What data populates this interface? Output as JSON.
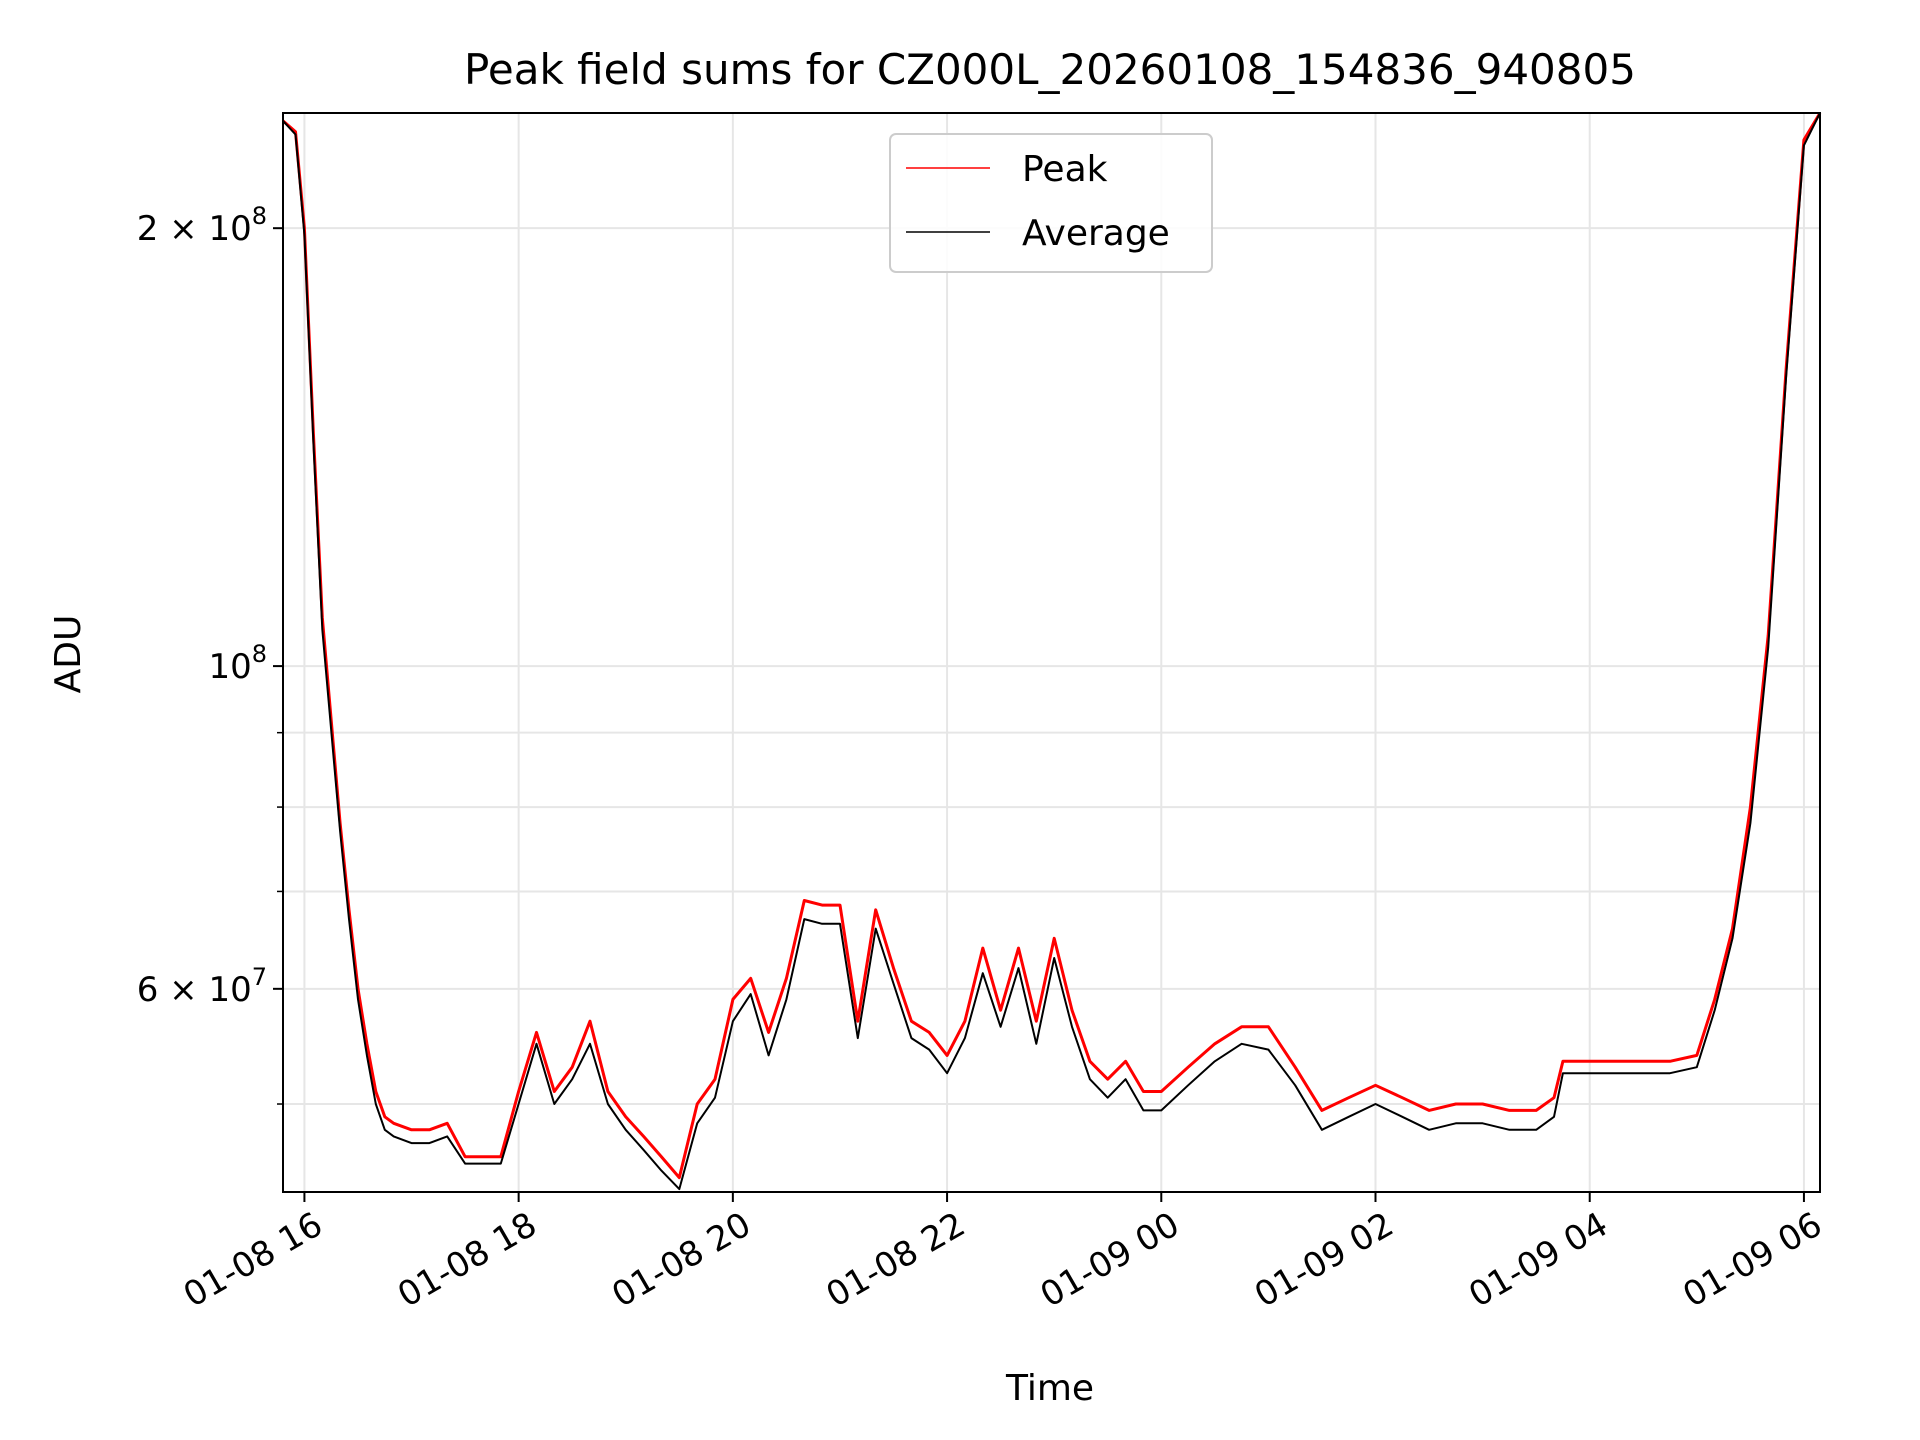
{
  "chart_data": {
    "type": "line",
    "title": "Peak field sums for CZ000L_20260108_154836_940805",
    "xlabel": "Time",
    "ylabel": "ADU",
    "yscale": "log",
    "grid": true,
    "legend_position": "top-center",
    "xlim": [
      "2026-01-08 15:48",
      "2026-01-09 06:09"
    ],
    "ylim": [
      43500000,
      240000000
    ],
    "x_ticks": [
      {
        "label": "01-08 16",
        "time": "2026-01-08 16:00"
      },
      {
        "label": "01-08 18",
        "time": "2026-01-08 18:00"
      },
      {
        "label": "01-08 20",
        "time": "2026-01-08 20:00"
      },
      {
        "label": "01-08 22",
        "time": "2026-01-08 22:00"
      },
      {
        "label": "01-09 00",
        "time": "2026-01-09 00:00"
      },
      {
        "label": "01-09 02",
        "time": "2026-01-09 02:00"
      },
      {
        "label": "01-09 04",
        "time": "2026-01-09 04:00"
      },
      {
        "label": "01-09 06",
        "time": "2026-01-09 06:00"
      }
    ],
    "y_major_ticks": [
      {
        "base": "2 × 10",
        "exp": "8",
        "value": 200000000
      },
      {
        "base": "10",
        "exp": "8",
        "value": 100000000
      },
      {
        "base": "6 × 10",
        "exp": "7",
        "value": 60000000
      }
    ],
    "y_minor_ticks": [
      50000000,
      70000000,
      80000000,
      90000000
    ],
    "series": [
      {
        "name": "Peak",
        "color": "#ff0000",
        "x": [
          "2026-01-08 15:48",
          "2026-01-08 15:55",
          "2026-01-08 16:00",
          "2026-01-08 16:05",
          "2026-01-08 16:10",
          "2026-01-08 16:20",
          "2026-01-08 16:25",
          "2026-01-08 16:30",
          "2026-01-08 16:35",
          "2026-01-08 16:40",
          "2026-01-08 16:45",
          "2026-01-08 16:50",
          "2026-01-08 17:00",
          "2026-01-08 17:10",
          "2026-01-08 17:20",
          "2026-01-08 17:30",
          "2026-01-08 17:40",
          "2026-01-08 17:50",
          "2026-01-08 18:00",
          "2026-01-08 18:10",
          "2026-01-08 18:20",
          "2026-01-08 18:30",
          "2026-01-08 18:40",
          "2026-01-08 18:50",
          "2026-01-08 19:00",
          "2026-01-08 19:10",
          "2026-01-08 19:20",
          "2026-01-08 19:30",
          "2026-01-08 19:40",
          "2026-01-08 19:50",
          "2026-01-08 20:00",
          "2026-01-08 20:10",
          "2026-01-08 20:20",
          "2026-01-08 20:30",
          "2026-01-08 20:40",
          "2026-01-08 20:50",
          "2026-01-08 21:00",
          "2026-01-08 21:10",
          "2026-01-08 21:20",
          "2026-01-08 21:30",
          "2026-01-08 21:40",
          "2026-01-08 21:50",
          "2026-01-08 22:00",
          "2026-01-08 22:10",
          "2026-01-08 22:20",
          "2026-01-08 22:30",
          "2026-01-08 22:40",
          "2026-01-08 22:50",
          "2026-01-08 23:00",
          "2026-01-08 23:10",
          "2026-01-08 23:20",
          "2026-01-08 23:30",
          "2026-01-08 23:40",
          "2026-01-08 23:50",
          "2026-01-09 00:00",
          "2026-01-09 00:15",
          "2026-01-09 00:30",
          "2026-01-09 00:45",
          "2026-01-09 01:00",
          "2026-01-09 01:15",
          "2026-01-09 01:30",
          "2026-01-09 01:45",
          "2026-01-09 02:00",
          "2026-01-09 02:15",
          "2026-01-09 02:30",
          "2026-01-09 02:45",
          "2026-01-09 03:00",
          "2026-01-09 03:15",
          "2026-01-09 03:30",
          "2026-01-09 03:40",
          "2026-01-09 03:45",
          "2026-01-09 04:00",
          "2026-01-09 04:15",
          "2026-01-09 04:30",
          "2026-01-09 04:45",
          "2026-01-09 05:00",
          "2026-01-09 05:10",
          "2026-01-09 05:20",
          "2026-01-09 05:30",
          "2026-01-09 05:40",
          "2026-01-09 05:50",
          "2026-01-09 06:00",
          "2026-01-09 06:09"
        ],
        "values": [
          237000000,
          233000000,
          200000000,
          145000000,
          108000000,
          78000000,
          68000000,
          60000000,
          55000000,
          51000000,
          49000000,
          48500000,
          48000000,
          48000000,
          48500000,
          46000000,
          46000000,
          46000000,
          51000000,
          56000000,
          51000000,
          53000000,
          57000000,
          51000000,
          49000000,
          47500000,
          46000000,
          44500000,
          50000000,
          52000000,
          59000000,
          61000000,
          56000000,
          61000000,
          69000000,
          68500000,
          68500000,
          57000000,
          68000000,
          62000000,
          57000000,
          56000000,
          54000000,
          57000000,
          64000000,
          58000000,
          64000000,
          57000000,
          65000000,
          58000000,
          53500000,
          52000000,
          53500000,
          51000000,
          51000000,
          53000000,
          55000000,
          56500000,
          56500000,
          53000000,
          49500000,
          50500000,
          51500000,
          50500000,
          49500000,
          50000000,
          50000000,
          49500000,
          49500000,
          50500000,
          53500000,
          53500000,
          53500000,
          53500000,
          53500000,
          54000000,
          59000000,
          66000000,
          80000000,
          105000000,
          160000000,
          230000000,
          240000000
        ]
      },
      {
        "name": "Average",
        "color": "#000000",
        "x": [
          "2026-01-08 15:48",
          "2026-01-08 15:55",
          "2026-01-08 16:00",
          "2026-01-08 16:05",
          "2026-01-08 16:10",
          "2026-01-08 16:20",
          "2026-01-08 16:25",
          "2026-01-08 16:30",
          "2026-01-08 16:35",
          "2026-01-08 16:40",
          "2026-01-08 16:45",
          "2026-01-08 16:50",
          "2026-01-08 17:00",
          "2026-01-08 17:10",
          "2026-01-08 17:20",
          "2026-01-08 17:30",
          "2026-01-08 17:40",
          "2026-01-08 17:50",
          "2026-01-08 18:00",
          "2026-01-08 18:10",
          "2026-01-08 18:20",
          "2026-01-08 18:30",
          "2026-01-08 18:40",
          "2026-01-08 18:50",
          "2026-01-08 19:00",
          "2026-01-08 19:10",
          "2026-01-08 19:20",
          "2026-01-08 19:30",
          "2026-01-08 19:40",
          "2026-01-08 19:50",
          "2026-01-08 20:00",
          "2026-01-08 20:10",
          "2026-01-08 20:20",
          "2026-01-08 20:30",
          "2026-01-08 20:40",
          "2026-01-08 20:50",
          "2026-01-08 21:00",
          "2026-01-08 21:10",
          "2026-01-08 21:20",
          "2026-01-08 21:30",
          "2026-01-08 21:40",
          "2026-01-08 21:50",
          "2026-01-08 22:00",
          "2026-01-08 22:10",
          "2026-01-08 22:20",
          "2026-01-08 22:30",
          "2026-01-08 22:40",
          "2026-01-08 22:50",
          "2026-01-08 23:00",
          "2026-01-08 23:10",
          "2026-01-08 23:20",
          "2026-01-08 23:30",
          "2026-01-08 23:40",
          "2026-01-08 23:50",
          "2026-01-09 00:00",
          "2026-01-09 00:15",
          "2026-01-09 00:30",
          "2026-01-09 00:45",
          "2026-01-09 01:00",
          "2026-01-09 01:15",
          "2026-01-09 01:30",
          "2026-01-09 01:45",
          "2026-01-09 02:00",
          "2026-01-09 02:15",
          "2026-01-09 02:30",
          "2026-01-09 02:45",
          "2026-01-09 03:00",
          "2026-01-09 03:15",
          "2026-01-09 03:30",
          "2026-01-09 03:40",
          "2026-01-09 03:45",
          "2026-01-09 04:00",
          "2026-01-09 04:15",
          "2026-01-09 04:30",
          "2026-01-09 04:45",
          "2026-01-09 05:00",
          "2026-01-09 05:10",
          "2026-01-09 05:20",
          "2026-01-09 05:30",
          "2026-01-09 05:40",
          "2026-01-09 05:50",
          "2026-01-09 06:00",
          "2026-01-09 06:09"
        ],
        "values": [
          237000000,
          232000000,
          198000000,
          143000000,
          106000000,
          77000000,
          67000000,
          59000000,
          54000000,
          50000000,
          48000000,
          47500000,
          47000000,
          47000000,
          47500000,
          45500000,
          45500000,
          45500000,
          50000000,
          55000000,
          50000000,
          52000000,
          55000000,
          50000000,
          48000000,
          46500000,
          45000000,
          43700000,
          48500000,
          50500000,
          57000000,
          59500000,
          54000000,
          59000000,
          67000000,
          66500000,
          66500000,
          55500000,
          66000000,
          60500000,
          55500000,
          54500000,
          52500000,
          55500000,
          61500000,
          56500000,
          62000000,
          55000000,
          63000000,
          56500000,
          52000000,
          50500000,
          52000000,
          49500000,
          49500000,
          51500000,
          53500000,
          55000000,
          54500000,
          51500000,
          48000000,
          49000000,
          50000000,
          49000000,
          48000000,
          48500000,
          48500000,
          48000000,
          48000000,
          49000000,
          52500000,
          52500000,
          52500000,
          52500000,
          52500000,
          53000000,
          58000000,
          65000000,
          78000000,
          103000000,
          158000000,
          228000000,
          240000000
        ]
      }
    ]
  }
}
